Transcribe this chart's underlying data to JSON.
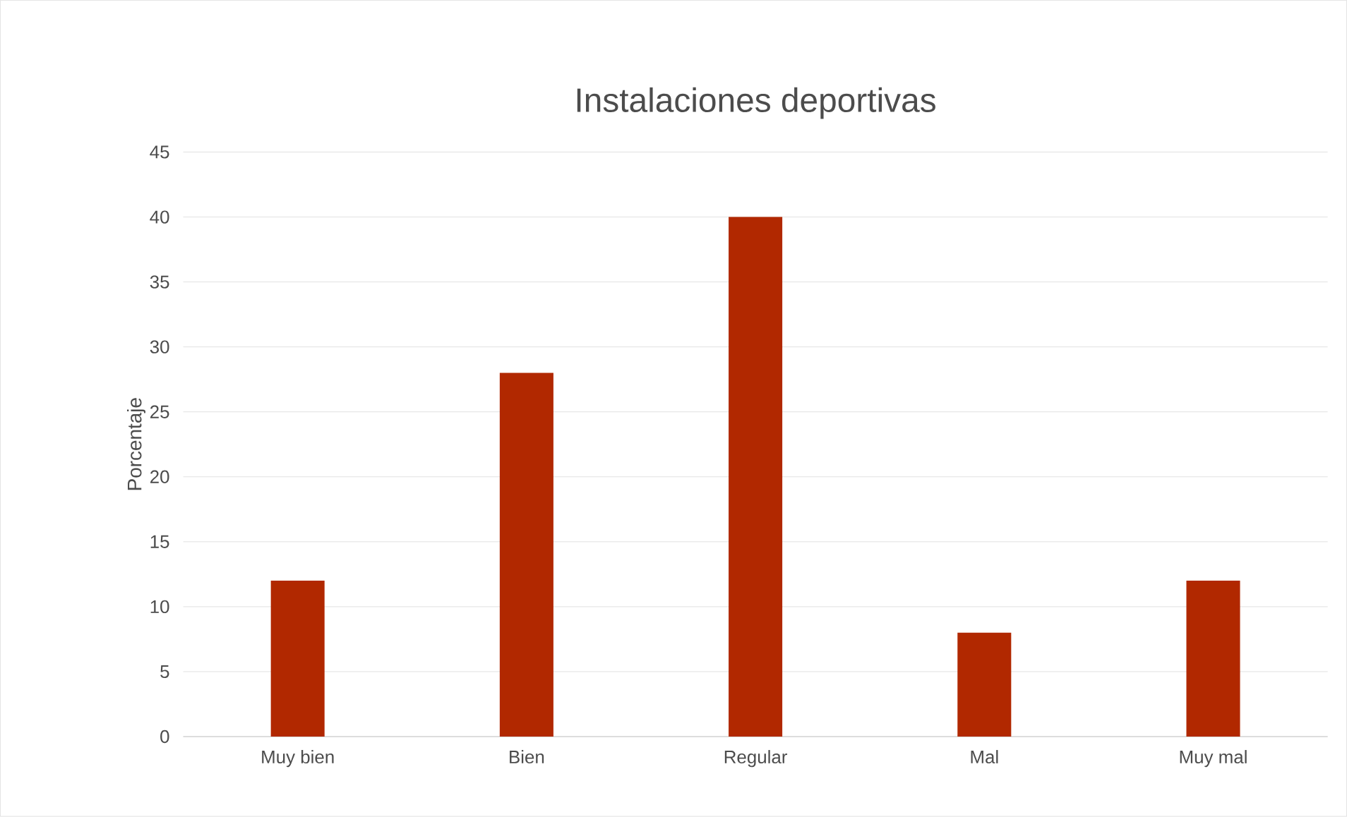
{
  "chart_data": {
    "type": "bar",
    "title": "Instalaciones deportivas",
    "ylabel": "Porcentaje",
    "categories": [
      "Muy bien",
      "Bien",
      "Regular",
      "Mal",
      "Muy mal"
    ],
    "values": [
      12,
      28,
      40,
      8,
      12
    ],
    "color": "#b12800",
    "ylim": [
      0,
      45
    ],
    "yticks": [
      0,
      5,
      10,
      15,
      20,
      25,
      30,
      35,
      40,
      45
    ],
    "grid": "y"
  }
}
